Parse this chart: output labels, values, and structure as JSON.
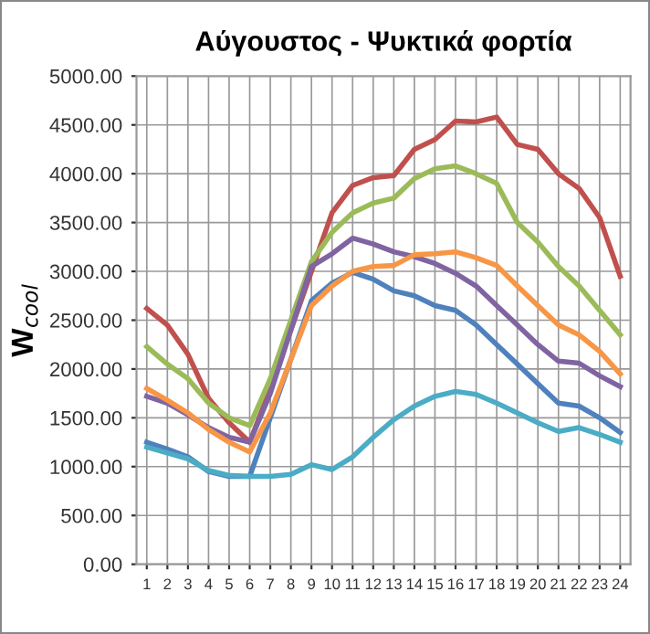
{
  "chart_data": {
    "type": "line",
    "title": "Αύγουστος - Ψυκτικά φορτία",
    "ylabel": "W$_{cool}$",
    "categories": [
      "1",
      "2",
      "3",
      "4",
      "5",
      "6",
      "7",
      "8",
      "9",
      "10",
      "11",
      "12",
      "13",
      "14",
      "15",
      "16",
      "17",
      "18",
      "19",
      "20",
      "21",
      "22",
      "23",
      "24"
    ],
    "series": [
      {
        "color": "#4f81bd",
        "values": [
          1250,
          1180,
          1100,
          950,
          900,
          900,
          1500,
          2100,
          2700,
          2880,
          2990,
          2920,
          2800,
          2750,
          2650,
          2600,
          2450,
          2250,
          2050,
          1850,
          1650,
          1620,
          1500,
          1350
        ]
      },
      {
        "color": "#c0504d",
        "values": [
          2620,
          2450,
          2150,
          1700,
          1450,
          1250,
          1800,
          2400,
          3000,
          3600,
          3880,
          3960,
          3980,
          4250,
          4350,
          4540,
          4530,
          4580,
          4300,
          4250,
          4000,
          3850,
          3550,
          2950
        ]
      },
      {
        "color": "#9bbb59",
        "values": [
          2230,
          2050,
          1900,
          1650,
          1500,
          1420,
          1900,
          2500,
          3100,
          3400,
          3600,
          3700,
          3750,
          3950,
          4050,
          4080,
          4000,
          3900,
          3500,
          3300,
          3050,
          2850,
          2600,
          2350
        ]
      },
      {
        "color": "#8064a2",
        "values": [
          1720,
          1650,
          1530,
          1400,
          1300,
          1250,
          1750,
          2400,
          3050,
          3180,
          3340,
          3280,
          3200,
          3150,
          3080,
          2980,
          2850,
          2650,
          2450,
          2250,
          2080,
          2060,
          1930,
          1820
        ]
      },
      {
        "color": "#4bacc6",
        "values": [
          1200,
          1140,
          1080,
          960,
          910,
          900,
          900,
          920,
          1020,
          970,
          1100,
          1300,
          1480,
          1620,
          1720,
          1770,
          1740,
          1650,
          1550,
          1450,
          1360,
          1400,
          1330,
          1250
        ]
      },
      {
        "color": "#f79646",
        "values": [
          1800,
          1680,
          1550,
          1380,
          1250,
          1150,
          1550,
          2100,
          2650,
          2850,
          3000,
          3050,
          3060,
          3170,
          3180,
          3200,
          3140,
          3060,
          2850,
          2650,
          2450,
          2350,
          2180,
          1950
        ]
      }
    ],
    "ylim": [
      0,
      5000
    ],
    "yticks": [
      {
        "value": 0,
        "label": "0.00"
      },
      {
        "value": 500,
        "label": "500.00"
      },
      {
        "value": 1000,
        "label": "1000.00"
      },
      {
        "value": 1500,
        "label": "1500.00"
      },
      {
        "value": 2000,
        "label": "2000.00"
      },
      {
        "value": 2500,
        "label": "2500.00"
      },
      {
        "value": 3000,
        "label": "3000.00"
      },
      {
        "value": 3500,
        "label": "3500.00"
      },
      {
        "value": 4000,
        "label": "4000.00"
      },
      {
        "value": 4500,
        "label": "4500.00"
      },
      {
        "value": 5000,
        "label": "5000.00"
      }
    ],
    "grid": true,
    "marker": "none",
    "line_style": "solid"
  }
}
